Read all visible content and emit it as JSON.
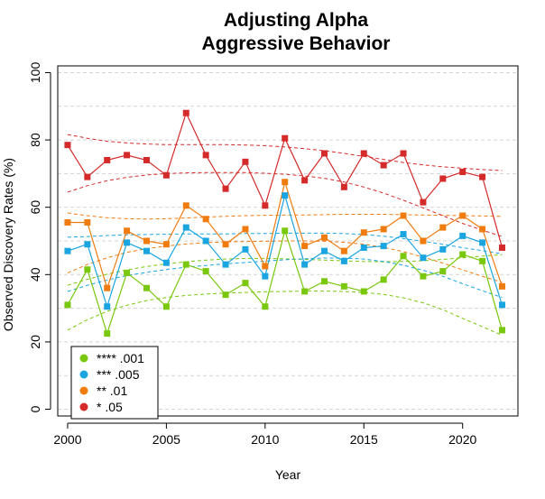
{
  "chart_data": {
    "type": "line",
    "title": [
      "Adjusting Alpha",
      "Aggressive Behavior"
    ],
    "xlabel": "Year",
    "ylabel": "Observed Discovery Rates (%)",
    "xlim": [
      1999.5,
      2022.8
    ],
    "ylim": [
      -2,
      102
    ],
    "x_ticks": [
      2000,
      2005,
      2010,
      2015,
      2020
    ],
    "y_ticks": [
      0,
      20,
      40,
      60,
      80,
      100
    ],
    "grid": "horizontal dashed",
    "legend_position": "bottom-left",
    "x": [
      2000,
      2001,
      2002,
      2003,
      2004,
      2005,
      2006,
      2007,
      2008,
      2009,
      2010,
      2011,
      2012,
      2013,
      2014,
      2015,
      2016,
      2017,
      2018,
      2019,
      2020,
      2021,
      2022
    ],
    "series": [
      {
        "name": "**** .001",
        "color": "#7ac80e",
        "values": [
          31,
          41.5,
          22.5,
          40.5,
          36,
          30.5,
          43,
          41,
          34,
          37.5,
          30.5,
          53,
          35,
          38,
          36.5,
          35,
          38.5,
          45.5,
          39.5,
          41,
          46,
          44,
          23.5
        ],
        "band_upper": [
          36.8,
          38.6,
          40.1,
          41.4,
          42.4,
          43.2,
          43.8,
          44.3,
          44.6,
          44.8,
          44.8,
          44.7,
          44.5,
          44.3,
          44.1,
          43.9,
          43.8,
          43.9,
          44.1,
          44.5,
          45.0,
          45.5,
          45.9
        ],
        "band_lower": [
          23.5,
          26.6,
          29.1,
          30.9,
          32.3,
          33.2,
          33.8,
          34.2,
          34.5,
          34.7,
          34.9,
          35.0,
          35.1,
          35.1,
          35.0,
          34.7,
          34.1,
          33.1,
          31.6,
          29.6,
          27.0,
          24.5,
          22.0
        ]
      },
      {
        "name": "*** .005",
        "color": "#1aa5e0",
        "values": [
          47,
          49,
          30.5,
          49.5,
          47,
          43.5,
          54,
          50,
          43,
          47.5,
          39.5,
          63.5,
          43,
          47,
          44,
          48,
          48.5,
          52,
          45,
          47.5,
          51.5,
          49.5,
          31
        ],
        "band_upper": [
          51.1,
          51.3,
          51.6,
          51.8,
          51.9,
          52.0,
          52.1,
          52.1,
          52.1,
          52.2,
          52.2,
          52.3,
          52.3,
          52.3,
          52.2,
          51.9,
          51.4,
          50.7,
          49.9,
          49.0,
          48.0,
          47.1,
          46.2
        ],
        "band_lower": [
          35.0,
          36.8,
          38.4,
          39.7,
          40.7,
          41.5,
          42.2,
          42.7,
          43.2,
          43.6,
          44.0,
          44.4,
          44.7,
          44.9,
          44.9,
          44.6,
          43.9,
          42.8,
          41.3,
          39.5,
          37.3,
          35.2,
          33.2
        ]
      },
      {
        "name": "** .01",
        "color": "#f07c10",
        "values": [
          55.5,
          55.5,
          36,
          53,
          50,
          49,
          60.5,
          56.5,
          49,
          53.5,
          42.5,
          67.5,
          48.5,
          51,
          47,
          52.5,
          53.5,
          57.5,
          50,
          54,
          57.5,
          53.5,
          36.5
        ],
        "band_upper": [
          58.3,
          57.5,
          56.9,
          56.6,
          56.5,
          56.6,
          56.8,
          57.1,
          57.3,
          57.5,
          57.6,
          57.7,
          57.7,
          57.8,
          57.9,
          57.9,
          57.9,
          57.8,
          57.7,
          57.6,
          57.5,
          57.4,
          57.3
        ],
        "band_lower": [
          40.5,
          43.0,
          45.0,
          46.6,
          47.7,
          48.5,
          49.1,
          49.5,
          49.7,
          49.8,
          49.9,
          50.0,
          50.0,
          49.9,
          49.6,
          49.0,
          48.1,
          46.8,
          45.2,
          43.4,
          41.4,
          39.5,
          37.7
        ]
      },
      {
        "name": "* .05",
        "color": "#d42a2a",
        "values": [
          78.5,
          69,
          74,
          75.5,
          74,
          69.5,
          88,
          75.5,
          65.5,
          73.5,
          60.5,
          80.5,
          68,
          76,
          66,
          76,
          72.5,
          76,
          61.5,
          68.5,
          70.5,
          69,
          48
        ],
        "band_upper": [
          81.6,
          80.5,
          79.6,
          79.1,
          78.8,
          78.6,
          78.6,
          78.6,
          78.6,
          78.5,
          78.3,
          77.9,
          77.4,
          76.8,
          76.0,
          75.1,
          74.2,
          73.3,
          72.6,
          72.0,
          71.6,
          71.2,
          70.9
        ],
        "band_lower": [
          64.5,
          66.4,
          67.9,
          68.9,
          69.6,
          70.0,
          70.2,
          70.3,
          70.3,
          70.3,
          70.1,
          69.8,
          69.3,
          68.6,
          67.5,
          66.0,
          64.2,
          62.1,
          59.8,
          57.5,
          55.2,
          53.2,
          51.3
        ]
      }
    ]
  }
}
